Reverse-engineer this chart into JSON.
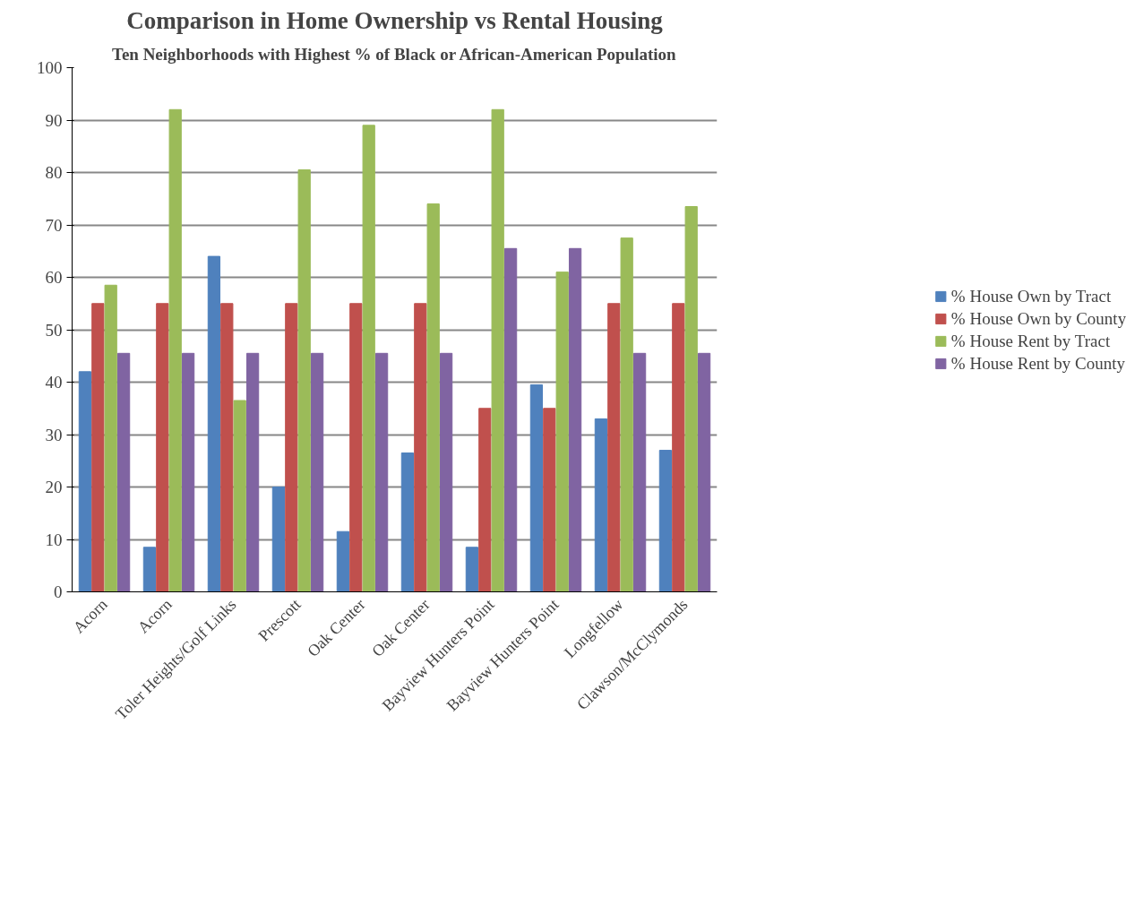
{
  "chart_data": {
    "type": "bar",
    "title": "Comparison in Home Ownership vs Rental Housing",
    "subtitle": "Ten Neighborhoods with Highest % of Black or African-American Population",
    "categories": [
      "Acorn",
      "Acorn",
      "Toler Heights/Golf Links",
      "Prescott",
      "Oak Center",
      "Oak Center",
      "Bayview Hunters Point",
      "Bayview Hunters Point",
      "Longfellow",
      "Clawson/McClymonds"
    ],
    "series": [
      {
        "name": "% House Own by Tract",
        "color": "#4f81bd",
        "values": [
          42,
          8.5,
          64,
          20,
          11.5,
          26.5,
          8.5,
          39.5,
          33,
          27
        ]
      },
      {
        "name": "% House Own by County",
        "color": "#c0504d",
        "values": [
          55,
          55,
          55,
          55,
          55,
          55,
          35,
          35,
          55,
          55
        ]
      },
      {
        "name": "% House Rent by Tract",
        "color": "#9bbb59",
        "values": [
          58.5,
          92,
          36.5,
          80.5,
          89,
          74,
          92,
          61,
          67.5,
          73.5
        ]
      },
      {
        "name": "% House Rent by County",
        "color": "#8064a2",
        "values": [
          45.5,
          45.5,
          45.5,
          45.5,
          45.5,
          45.5,
          65.5,
          65.5,
          45.5,
          45.5
        ]
      }
    ],
    "ylim": [
      0,
      100
    ],
    "yticks": [
      0,
      10,
      20,
      30,
      40,
      50,
      60,
      70,
      80,
      90,
      100
    ],
    "grid": "y",
    "legend": "right"
  }
}
